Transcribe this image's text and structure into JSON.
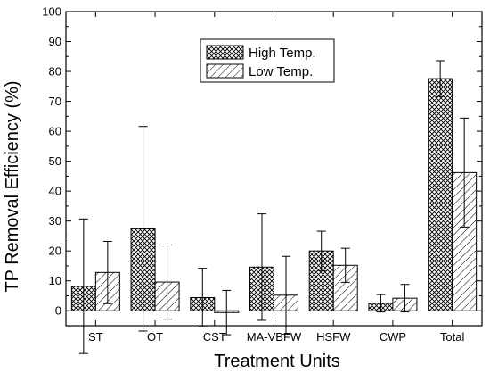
{
  "chart_data": {
    "type": "bar",
    "xlabel": "Treatment Units",
    "ylabel": "TP Removal Efficiency (%)",
    "ylim": [
      -5,
      100
    ],
    "yticks": [
      0,
      10,
      20,
      30,
      40,
      50,
      60,
      70,
      80,
      90,
      100
    ],
    "categories": [
      "ST",
      "OT",
      "CST",
      "MA-VBFW",
      "HSFW",
      "CWP",
      "Total"
    ],
    "series": [
      {
        "name": "High Temp.",
        "pattern": "crosshatch",
        "values": [
          8.2,
          27.4,
          4.4,
          14.6,
          20.0,
          2.5,
          77.6
        ],
        "error": [
          22.5,
          34.2,
          9.8,
          17.8,
          6.6,
          2.9,
          6.0
        ]
      },
      {
        "name": "Low Temp.",
        "pattern": "diagonal",
        "values": [
          12.8,
          9.6,
          -0.6,
          5.2,
          15.2,
          4.2,
          46.2
        ],
        "error": [
          10.4,
          12.4,
          7.4,
          13.0,
          5.7,
          4.6,
          18.2
        ]
      }
    ],
    "legend_position": "top-center",
    "grid": false
  }
}
